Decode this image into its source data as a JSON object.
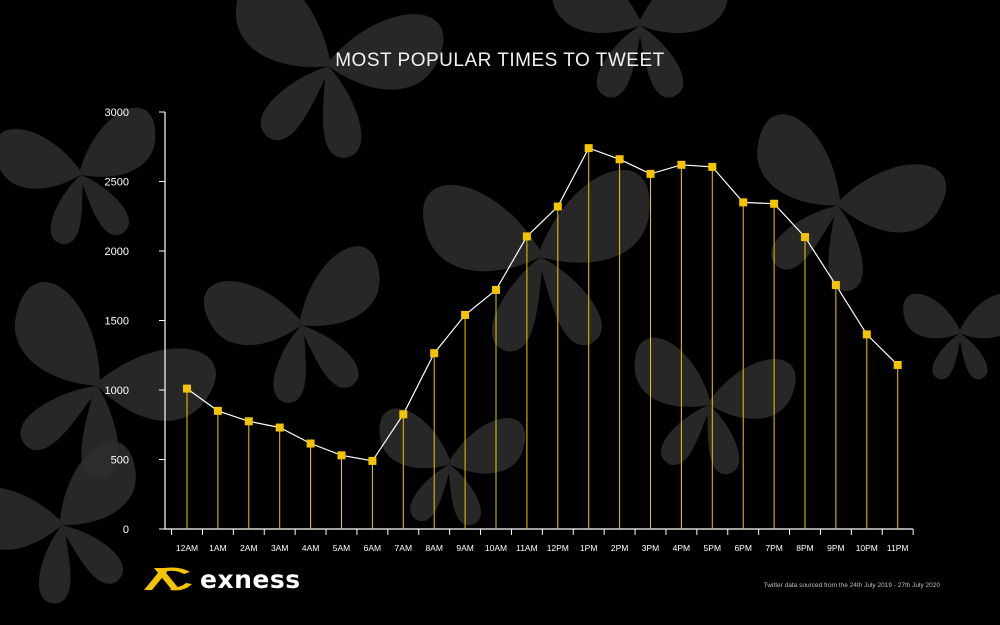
{
  "brand": {
    "name": "exness",
    "accent": "#f5c400"
  },
  "footnote": "Twitter data sourced from the 24th July 2019 - 27th July 2020",
  "chart_data": {
    "type": "line",
    "title": "MOST POPULAR TIMES TO TWEET",
    "xlabel": "",
    "ylabel": "",
    "ylim": [
      0,
      3000
    ],
    "yticks": [
      0,
      500,
      1000,
      1500,
      2000,
      2500,
      3000
    ],
    "categories": [
      "12AM",
      "1AM",
      "2AM",
      "3AM",
      "4AM",
      "5AM",
      "6AM",
      "7AM",
      "8AM",
      "9AM",
      "10AM",
      "11AM",
      "12PM",
      "1PM",
      "2PM",
      "3PM",
      "4PM",
      "5PM",
      "6PM",
      "7PM",
      "8PM",
      "9PM",
      "10PM",
      "11PM"
    ],
    "series": [
      {
        "values": [
          1010,
          850,
          775,
          730,
          615,
          530,
          490,
          825,
          1265,
          1540,
          1720,
          2105,
          2320,
          2740,
          2660,
          2555,
          2620,
          2605,
          2350,
          2340,
          2100,
          1755,
          1400,
          1180
        ],
        "color": "#f5c400"
      }
    ],
    "grid": false,
    "legend": "none",
    "colors": {
      "line": "#ffffff",
      "drop_lines": "#f5c400",
      "axis": "#ffffff",
      "background": "#000000",
      "decor": "#2e2e2e"
    }
  }
}
